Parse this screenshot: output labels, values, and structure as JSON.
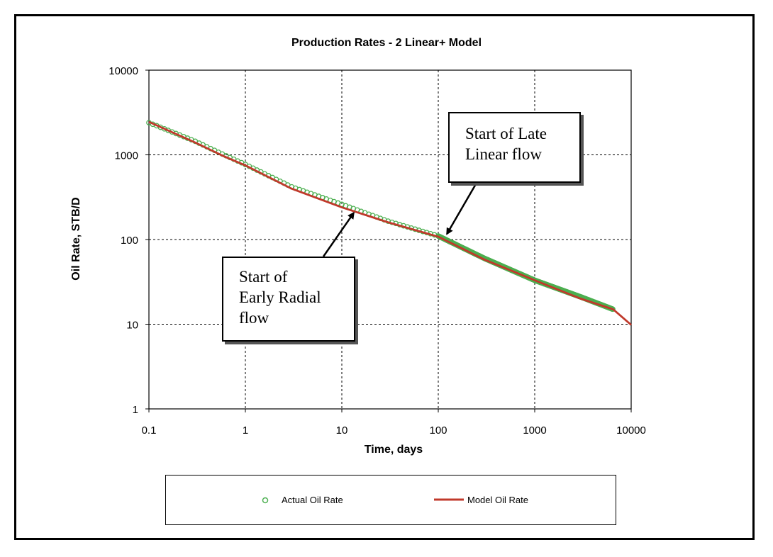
{
  "chart_data": {
    "type": "scatter",
    "title": "Production Rates - 2 Linear+ Model",
    "xlabel": "Time, days",
    "ylabel": "Oil Rate, STB/D",
    "xscale": "log",
    "yscale": "log",
    "xlim": [
      0.1,
      10000
    ],
    "ylim": [
      1,
      10000
    ],
    "x_ticks": [
      "0.1",
      "1",
      "10",
      "100",
      "1000",
      "10000"
    ],
    "y_ticks": [
      "1",
      "10",
      "100",
      "1000",
      "10000"
    ],
    "grid": true,
    "series": [
      {
        "name": "Actual Oil Rate",
        "marker": "open-circle",
        "color": "#4caf50",
        "x": [
          0.1,
          0.3,
          0.6,
          1,
          3,
          10,
          30,
          100,
          300,
          1000,
          3000,
          6500
        ],
        "y": [
          2400,
          1450,
          1000,
          770,
          420,
          260,
          165,
          110,
          60,
          33,
          21,
          15
        ]
      },
      {
        "name": "Model Oil Rate",
        "marker": "line",
        "color": "#c0392b",
        "x": [
          0.1,
          0.3,
          0.6,
          1,
          3,
          10,
          30,
          100,
          300,
          1000,
          3000,
          6500,
          10000
        ],
        "y": [
          2450,
          1400,
          960,
          750,
          400,
          240,
          160,
          108,
          58,
          33,
          20,
          15,
          9.8
        ]
      }
    ],
    "annotations": [
      {
        "id": "late",
        "lines": [
          "Start of Late",
          "Linear flow"
        ],
        "target_x": 115,
        "target_y": 110
      },
      {
        "id": "early",
        "lines": [
          "Start of",
          "Early Radial",
          "flow"
        ],
        "target_x": 12,
        "target_y": 250
      }
    ],
    "legend": "bottom"
  }
}
